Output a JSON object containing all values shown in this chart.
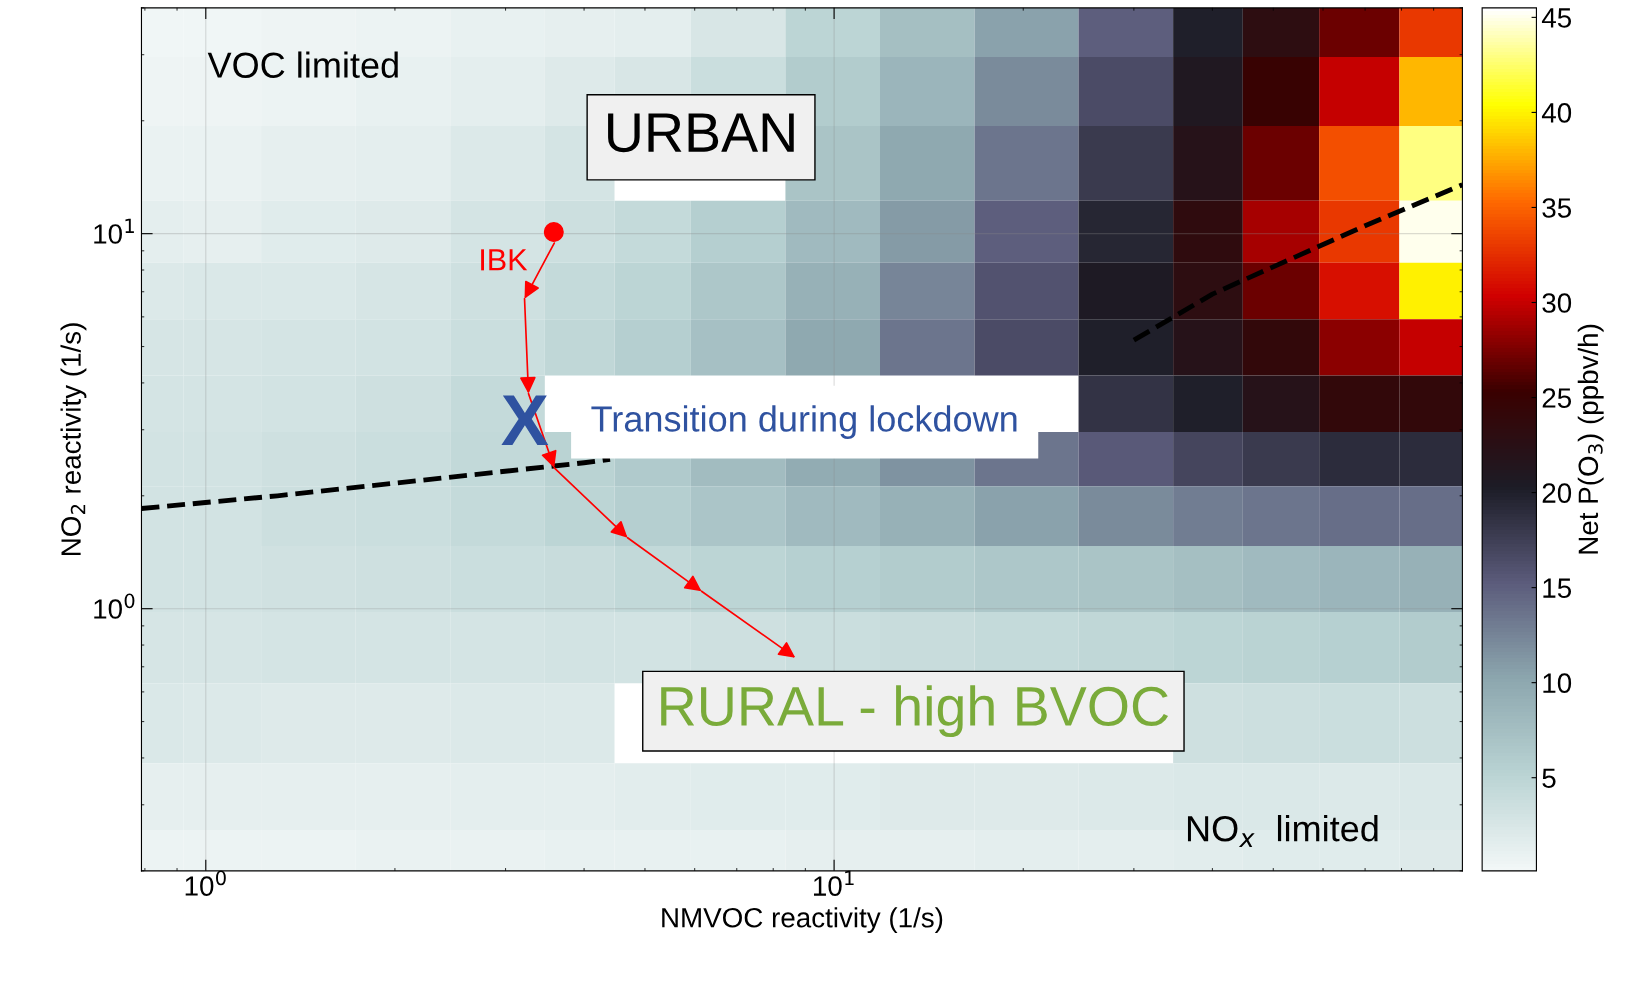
{
  "chart_data": {
    "type": "heatmap",
    "xlabel": "NMVOC reactivity (1/s)",
    "ylabel": "NO$_{2}$ reactivity (1/s)",
    "clabel": "Net P(O$_{3}$) (ppbv/h)",
    "x": [
      0.85,
      1,
      1.5,
      2,
      3,
      4,
      5,
      7,
      10,
      14,
      20,
      30,
      40,
      50,
      70,
      90
    ],
    "y": [
      35,
      25,
      15,
      10,
      7,
      5,
      3.5,
      2.5,
      1.8,
      1.2,
      0.8,
      0.5,
      0.3,
      0.22
    ],
    "cells": [
      [
        0.3,
        0.4,
        0.5,
        0.7,
        1,
        1.2,
        1.5,
        2.5,
        5,
        7.5,
        10.5,
        15,
        20,
        23,
        27,
        33
      ],
      [
        0.5,
        0.6,
        0.8,
        1,
        1.5,
        2,
        2.5,
        3.8,
        6,
        8.5,
        12,
        16.5,
        21,
        25,
        30,
        38
      ],
      [
        0.9,
        0.9,
        1.2,
        1.5,
        2.2,
        2.9,
        null,
        null,
        7,
        10,
        13.5,
        18,
        22,
        27,
        34,
        43
      ],
      [
        1.5,
        1.3,
        1.7,
        2,
        2.9,
        3.6,
        4.3,
        5.7,
        8,
        11,
        15,
        19.5,
        23.5,
        29,
        33,
        45
      ],
      [
        2.1,
        2.3,
        2.4,
        2.6,
        3.4,
        4.2,
        5,
        6.5,
        9,
        12.5,
        16,
        20.5,
        23,
        27,
        31,
        40
      ],
      [
        2.6,
        2.6,
        2.8,
        3,
        3.8,
        4.7,
        5.6,
        7.3,
        10,
        13.5,
        16.5,
        20,
        22,
        24,
        28,
        30
      ],
      [
        2.8,
        2.8,
        3.1,
        3.4,
        4.2,
        null,
        null,
        null,
        null,
        null,
        null,
        18.5,
        20,
        22,
        24,
        24
      ],
      [
        3,
        3,
        3.4,
        3.7,
        4.4,
        5.2,
        6.2,
        7.8,
        9.5,
        11.5,
        13.5,
        15.5,
        17,
        18,
        19,
        19
      ],
      [
        3.1,
        3.1,
        3.5,
        3.7,
        4.3,
        4.9,
        5.7,
        6.8,
        8,
        9,
        10.5,
        12,
        13,
        13.5,
        14,
        14
      ],
      [
        3,
        3,
        3.2,
        3.3,
        3.7,
        4,
        4.5,
        5,
        5.5,
        6,
        6.5,
        7,
        7.5,
        8,
        8.5,
        9
      ],
      [
        2.7,
        2.7,
        2.8,
        2.8,
        2.9,
        3,
        3.1,
        3.4,
        3.7,
        4,
        4.3,
        4.7,
        5,
        5.2,
        5.5,
        6
      ],
      [
        2.3,
        2.2,
        2,
        2,
        2.1,
        2.2,
        null,
        null,
        null,
        null,
        null,
        null,
        3.4,
        3.6,
        3.8,
        3.6
      ],
      [
        1.2,
        1.2,
        1.3,
        1.3,
        1.4,
        1.5,
        1.6,
        1.7,
        1.8,
        1.9,
        2,
        2.2,
        2.3,
        2.4,
        2.2,
        2.3
      ],
      [
        0.8,
        0.8,
        0.8,
        0.9,
        0.9,
        1,
        1,
        1.1,
        1.2,
        1.3,
        1.4,
        1.5,
        1.6,
        1.7,
        1.8,
        2
      ]
    ],
    "colors": [
      "#f2f7f7",
      "#b9d3d3",
      "#8ca6ae",
      "#5b5b7b",
      "#1c1c26",
      "#3a0000",
      "#d00000",
      "#ff6a00",
      "#ffff00",
      "#ffffff"
    ],
    "clim": [
      0.1,
      45.5
    ],
    "cticks": [
      5,
      10,
      15,
      20,
      25,
      30,
      35,
      40,
      45
    ],
    "log": "xy",
    "xlim": [
      0.79,
      100
    ],
    "ylim": [
      0.2,
      40
    ],
    "xticks": [
      {
        "value": 1,
        "label": "10$^{0}$"
      },
      {
        "value": 10,
        "label": "10$^{1}$"
      }
    ],
    "yticks": [
      {
        "value": 1,
        "label": "10$^{0}$"
      },
      {
        "value": 10,
        "label": "10$^{1}$"
      }
    ],
    "grid": true,
    "series": [
      {
        "type": "line",
        "line_style": "dashed",
        "color": "#000000",
        "x": [
          0.79,
          1.3,
          4,
          4.4,
          10,
          30,
          40,
          70,
          100
        ],
        "values": [
          1.85,
          2.0,
          2.45,
          2.5,
          null,
          5.2,
          6.9,
          10.5,
          13.5
        ]
      },
      {
        "type": "scatter",
        "marker": "circle",
        "color": "#ff0000",
        "x": [
          3.58
        ],
        "values": [
          10.1
        ]
      }
    ],
    "annotations": [
      "VOC limited",
      "URBAN",
      "IBK",
      "X",
      "Transition during lockdown",
      "RURAL - high BVOC",
      "NO$_{x}$  limited"
    ]
  }
}
